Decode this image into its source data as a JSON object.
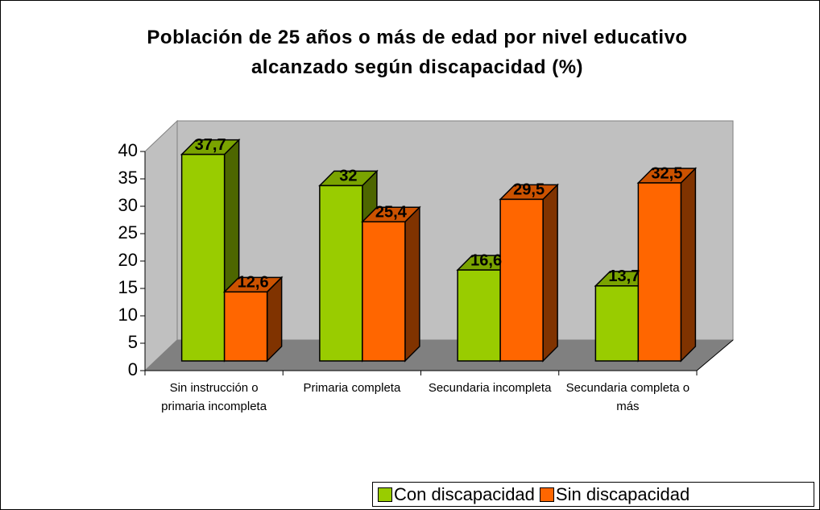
{
  "chart_data": {
    "type": "bar3d",
    "title": "Población de 25 años o más de edad por nivel educativo alcanzado según discapacidad (%)",
    "categories": [
      "Sin instrucción o primaria incompleta",
      "Primaria completa",
      "Secundaria incompleta",
      "Secundaria completa o más"
    ],
    "series": [
      {
        "name": "Con discapacidad",
        "color": "#99cc00",
        "values": [
          37.7,
          32,
          16.6,
          13.7
        ],
        "value_labels": [
          "37,7",
          "32",
          "16,6",
          "13,7"
        ]
      },
      {
        "name": "Sin discapacidad",
        "color": "#ff6600",
        "values": [
          12.6,
          25.4,
          29.5,
          32.5
        ],
        "value_labels": [
          "12,6",
          "25,4",
          "29,5",
          "32,5"
        ]
      }
    ],
    "ylim": [
      0,
      40
    ],
    "yticks": [
      0,
      5,
      10,
      15,
      20,
      25,
      30,
      35,
      40
    ],
    "legend": "bottom-right"
  }
}
